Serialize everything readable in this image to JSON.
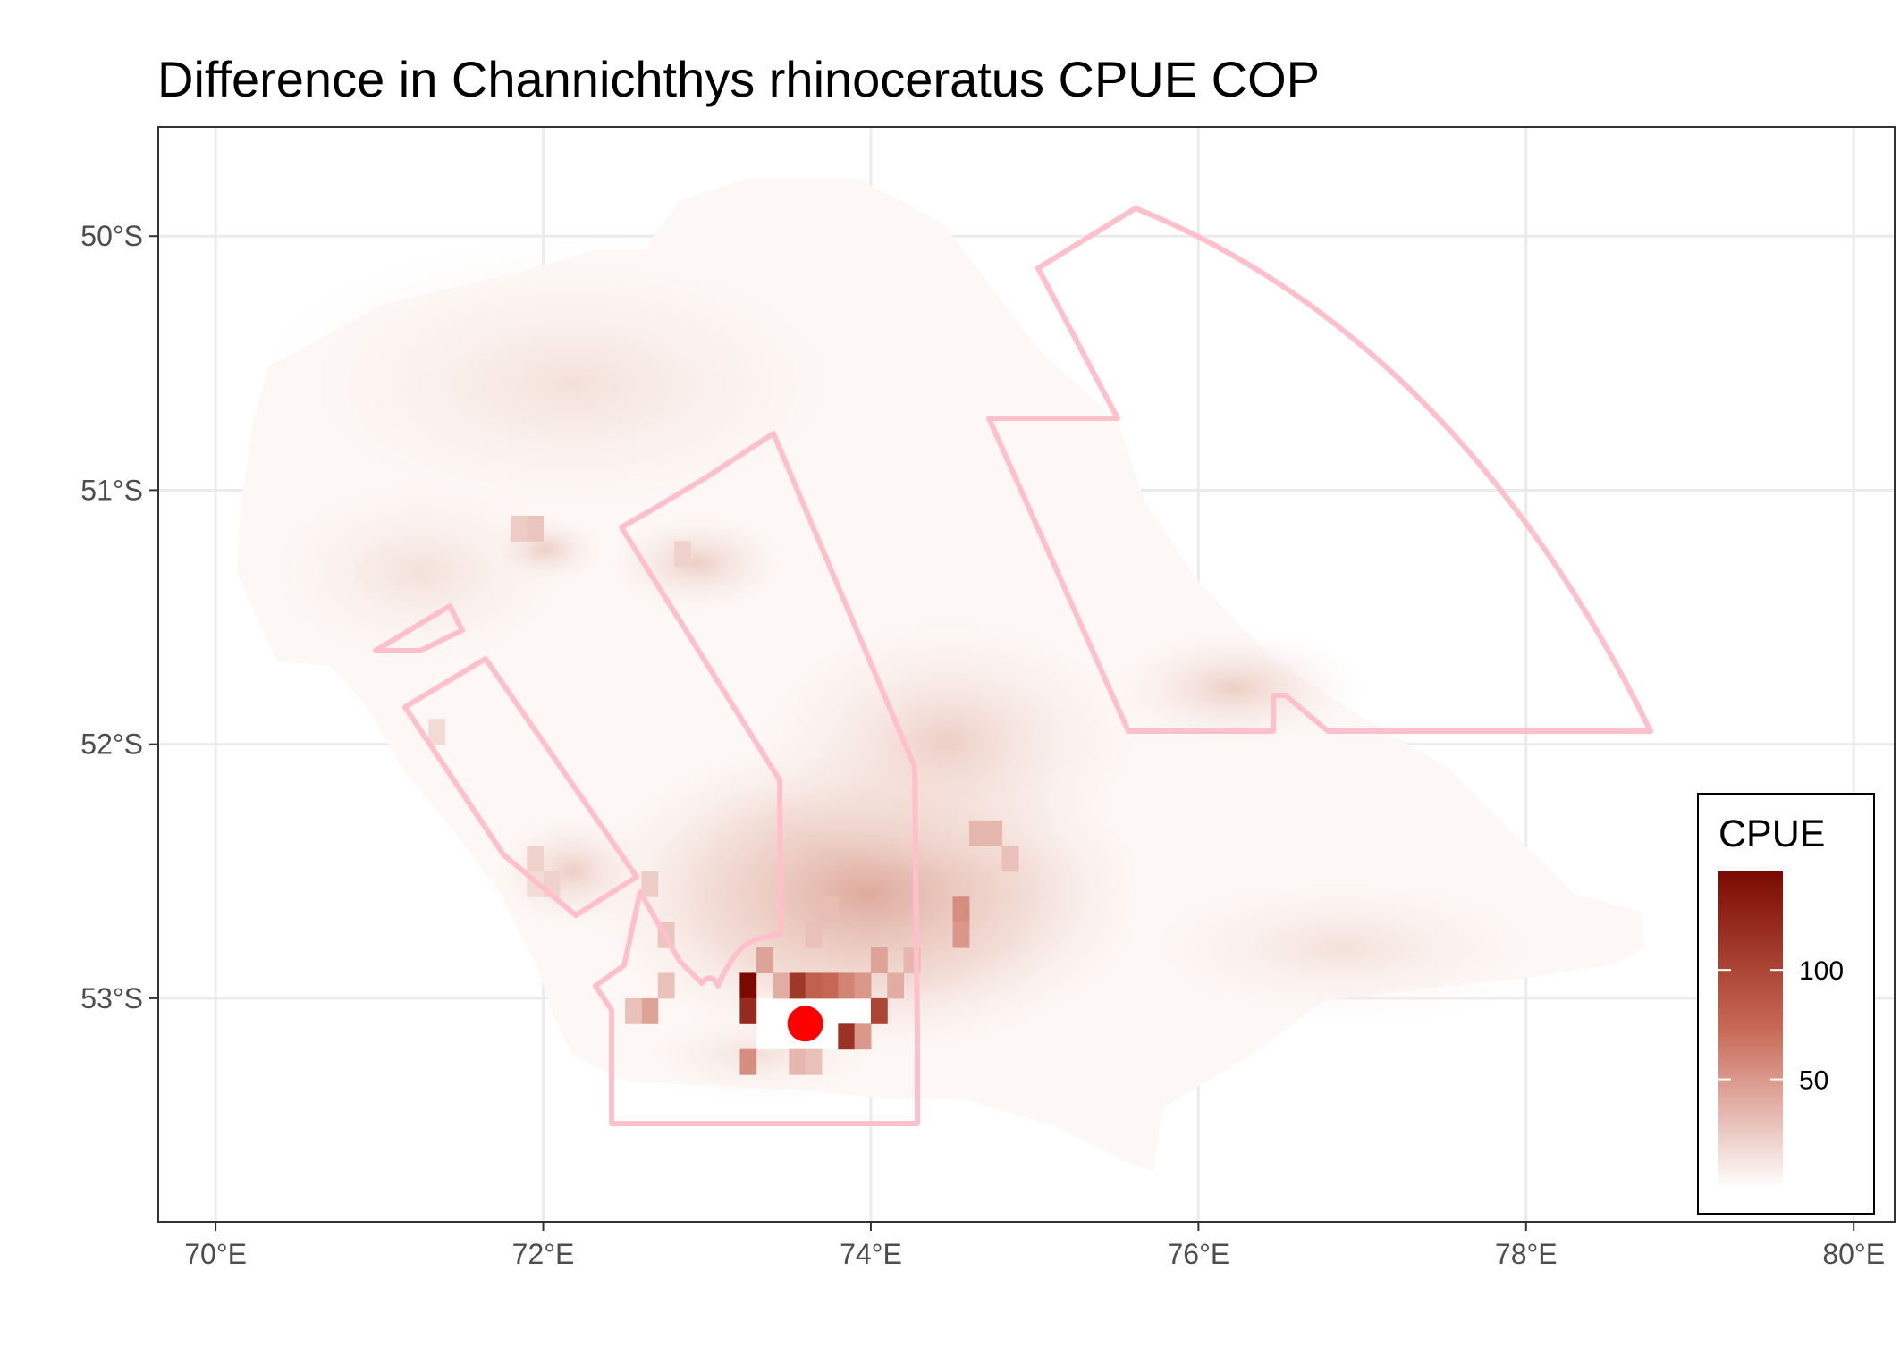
{
  "title": "Difference in  Channichthys rhinoceratus CPUE COP",
  "colors": {
    "high": "#7a0a00",
    "mid": "#c96a57",
    "low": "#ffffff",
    "boundary": "#ffc0cb",
    "marker": "#ff0000",
    "grid": "#ebebeb",
    "axis": "#333333"
  },
  "chart_data": {
    "type": "heatmap",
    "title": "Difference in  Channichthys rhinoceratus CPUE COP",
    "xlabel": "",
    "ylabel": "",
    "xlim": [
      69.65,
      80.25
    ],
    "ylim": [
      -53.88,
      -49.57
    ],
    "grid": true,
    "x_ticks": [
      {
        "value": 70,
        "label": "70°E"
      },
      {
        "value": 72,
        "label": "72°E"
      },
      {
        "value": 74,
        "label": "74°E"
      },
      {
        "value": 76,
        "label": "76°E"
      },
      {
        "value": 78,
        "label": "78°E"
      },
      {
        "value": 80,
        "label": "80°E"
      }
    ],
    "y_ticks": [
      {
        "value": -50,
        "label": "50°S"
      },
      {
        "value": -51,
        "label": "51°S"
      },
      {
        "value": -52,
        "label": "52°S"
      },
      {
        "value": -53,
        "label": "53°S"
      }
    ],
    "legend": {
      "title": "CPUE",
      "position": "bottom-right",
      "min": 0,
      "max": 145,
      "ticks": [
        {
          "value": 50,
          "label": "50"
        },
        {
          "value": 100,
          "label": "100"
        }
      ]
    },
    "point": {
      "lon": 73.6,
      "lat": -53.1
    },
    "cells": [
      {
        "lon": 73.25,
        "lat": -52.95,
        "value": 145
      },
      {
        "lon": 73.25,
        "lat": -53.05,
        "value": 120
      },
      {
        "lon": 73.55,
        "lat": -52.95,
        "value": 110
      },
      {
        "lon": 73.85,
        "lat": -53.15,
        "value": 115
      },
      {
        "lon": 74.05,
        "lat": -53.05,
        "value": 100
      },
      {
        "lon": 73.65,
        "lat": -52.95,
        "value": 80
      },
      {
        "lon": 73.75,
        "lat": -52.95,
        "value": 75
      },
      {
        "lon": 73.85,
        "lat": -52.95,
        "value": 60
      },
      {
        "lon": 73.95,
        "lat": -52.95,
        "value": 50
      },
      {
        "lon": 73.95,
        "lat": -53.15,
        "value": 50
      },
      {
        "lon": 73.25,
        "lat": -53.25,
        "value": 55
      },
      {
        "lon": 73.45,
        "lat": -52.95,
        "value": 40
      },
      {
        "lon": 73.35,
        "lat": -52.85,
        "value": 45
      },
      {
        "lon": 73.55,
        "lat": -53.25,
        "value": 35
      },
      {
        "lon": 73.65,
        "lat": -53.25,
        "value": 30
      },
      {
        "lon": 74.05,
        "lat": -52.85,
        "value": 45
      },
      {
        "lon": 74.15,
        "lat": -52.95,
        "value": 40
      },
      {
        "lon": 74.25,
        "lat": -52.85,
        "value": 35
      },
      {
        "lon": 74.55,
        "lat": -52.65,
        "value": 55
      },
      {
        "lon": 74.55,
        "lat": -52.75,
        "value": 50
      },
      {
        "lon": 72.65,
        "lat": -53.05,
        "value": 45
      },
      {
        "lon": 72.55,
        "lat": -53.05,
        "value": 30
      },
      {
        "lon": 72.75,
        "lat": -52.95,
        "value": 30
      },
      {
        "lon": 72.75,
        "lat": -52.75,
        "value": 28
      },
      {
        "lon": 72.65,
        "lat": -52.55,
        "value": 25
      },
      {
        "lon": 73.75,
        "lat": -52.65,
        "value": 32
      },
      {
        "lon": 73.65,
        "lat": -52.75,
        "value": 30
      },
      {
        "lon": 74.65,
        "lat": -52.35,
        "value": 35
      },
      {
        "lon": 74.75,
        "lat": -52.35,
        "value": 35
      },
      {
        "lon": 74.85,
        "lat": -52.45,
        "value": 30
      },
      {
        "lon": 71.85,
        "lat": -51.15,
        "value": 25
      },
      {
        "lon": 71.95,
        "lat": -51.15,
        "value": 28
      },
      {
        "lon": 72.85,
        "lat": -51.25,
        "value": 22
      },
      {
        "lon": 71.95,
        "lat": -52.45,
        "value": 22
      },
      {
        "lon": 72.05,
        "lat": -52.55,
        "value": 22
      },
      {
        "lon": 71.95,
        "lat": -52.55,
        "value": 18
      },
      {
        "lon": 71.35,
        "lat": -51.95,
        "value": 18
      }
    ]
  }
}
